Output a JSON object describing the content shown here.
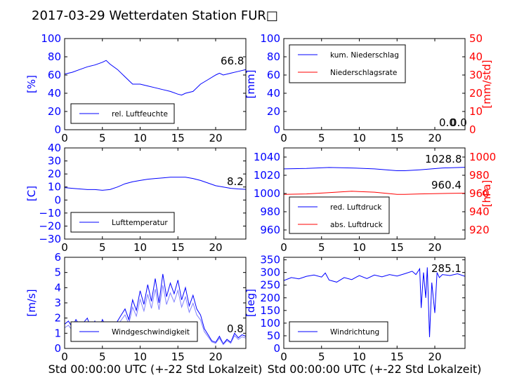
{
  "figure": {
    "title": "2017-03-29 Wetterdaten Station FUR□",
    "xlabel_left": "Std 00:00:00 UTC (+-22 Std Lokalzeit)",
    "xlabel_right": "Std 00:00:00 UTC (+-22 Std Lokalzeit)"
  },
  "colors": {
    "blue": "#0000ff",
    "red": "#ff0000",
    "light_blue": "#7f7fff",
    "black": "#000000"
  },
  "chart_data": [
    {
      "id": "humidity",
      "type": "line",
      "ylabel": "[%]",
      "xlim": [
        0,
        24
      ],
      "ylim": [
        0,
        100
      ],
      "xticks": [
        "0",
        "5",
        "10",
        "15",
        "20"
      ],
      "yticks": [
        "0",
        "20",
        "40",
        "60",
        "80",
        "100"
      ],
      "legend": {
        "position": "lower-left",
        "entries": [
          "rel. Luftfeuchte"
        ]
      },
      "annotations": [
        "66.8"
      ],
      "series": [
        {
          "name": "rel. Luftfeuchte",
          "color": "#0000ff",
          "x": [
            0,
            1,
            2,
            3,
            4,
            5,
            5.5,
            6,
            7,
            8,
            9,
            10,
            11,
            12,
            13,
            14,
            15,
            15.5,
            16,
            17,
            18,
            19,
            20,
            20.5,
            21,
            22,
            23,
            24
          ],
          "y": [
            61,
            63,
            66,
            69,
            71,
            74,
            76,
            72,
            66,
            58,
            50,
            50,
            48,
            46,
            44,
            42,
            39,
            38,
            40,
            42,
            50,
            55,
            60,
            62,
            60,
            62,
            64,
            66
          ]
        }
      ]
    },
    {
      "id": "precip",
      "type": "line",
      "ylabel": "[mm]",
      "y2label": "[mm/std]",
      "xlim": [
        0,
        24
      ],
      "ylim": [
        0,
        100
      ],
      "y2lim": [
        0,
        50
      ],
      "xticks": [
        "0",
        "5",
        "10",
        "15",
        "20"
      ],
      "yticks": [
        "0",
        "20",
        "40",
        "60",
        "80",
        "100"
      ],
      "y2ticks": [
        "0",
        "10",
        "20",
        "30",
        "40",
        "50"
      ],
      "legend": {
        "position": "upper-left",
        "entries": [
          "kum. Niederschlag",
          "Niederschlagsrate"
        ]
      },
      "annotations": [
        "0.0",
        "0.0"
      ],
      "series": [
        {
          "name": "kum. Niederschlag",
          "color": "#0000ff",
          "x": [
            0,
            24
          ],
          "y": [
            0,
            0
          ]
        },
        {
          "name": "Niederschlagsrate",
          "color": "#ff0000",
          "x": [
            0,
            24
          ],
          "y": [
            0,
            0
          ]
        }
      ]
    },
    {
      "id": "temperature",
      "type": "line",
      "ylabel": "[C]",
      "xlim": [
        0,
        24
      ],
      "ylim": [
        -30,
        40
      ],
      "xticks": [
        "0",
        "5",
        "10",
        "15",
        "20"
      ],
      "yticks": [
        "−30",
        "−20",
        "−10",
        "0",
        "10",
        "20",
        "30",
        "40"
      ],
      "legend": {
        "position": "lower-left",
        "entries": [
          "Lufttemperatur"
        ]
      },
      "annotations": [
        "8.2"
      ],
      "series": [
        {
          "name": "Lufttemperatur",
          "color": "#0000ff",
          "x": [
            0,
            1,
            2,
            3,
            4,
            5,
            6,
            7,
            8,
            9,
            10,
            11,
            12,
            13,
            14,
            15,
            16,
            17,
            18,
            19,
            20,
            21,
            22,
            23,
            24
          ],
          "y": [
            9.5,
            9,
            8.5,
            8,
            8,
            7.5,
            8,
            10,
            12.5,
            14,
            15,
            16,
            16.5,
            17,
            17.5,
            17.5,
            17.5,
            16.5,
            15,
            13,
            11,
            10,
            9,
            8.5,
            8.2
          ]
        }
      ]
    },
    {
      "id": "pressure",
      "type": "line",
      "ylabel": "",
      "y2label": "[hPa]",
      "xlim": [
        0,
        24
      ],
      "ylim": [
        950,
        1050
      ],
      "y2lim": [
        910,
        1010
      ],
      "xticks": [
        "0",
        "5",
        "10",
        "15",
        "20"
      ],
      "yticks": [
        "960",
        "980",
        "1000",
        "1020",
        "1040"
      ],
      "y2ticks": [
        "920",
        "940",
        "960",
        "980",
        "1000"
      ],
      "legend": {
        "position": "lower-left",
        "entries": [
          "red. Luftdruck",
          "abs. Luftdruck"
        ]
      },
      "annotations": [
        "1028.8",
        "960.4"
      ],
      "series": [
        {
          "name": "red. Luftdruck",
          "color": "#0000ff",
          "x": [
            0,
            3,
            6,
            9,
            12,
            15,
            16,
            18,
            21,
            24
          ],
          "y": [
            1027,
            1027.5,
            1028.5,
            1028,
            1027,
            1025,
            1025,
            1026,
            1028,
            1028.8
          ]
        },
        {
          "name": "abs. Luftdruck",
          "color": "#ff0000",
          "x": [
            0,
            3,
            6,
            9,
            12,
            15,
            16,
            18,
            21,
            24
          ],
          "y": [
            959,
            959.5,
            961,
            962.5,
            961.5,
            959,
            959,
            959.5,
            960,
            960.4
          ]
        }
      ]
    },
    {
      "id": "wind_speed",
      "type": "line",
      "ylabel": "[m/s]",
      "xlim": [
        0,
        24
      ],
      "ylim": [
        0,
        6
      ],
      "xticks": [
        "0",
        "5",
        "10",
        "15",
        "20"
      ],
      "yticks": [
        "0",
        "1",
        "2",
        "3",
        "4",
        "5",
        "6"
      ],
      "legend": {
        "position": "lower-left",
        "entries": [
          "Windgeschwindigkeit"
        ]
      },
      "annotations": [
        "0.8"
      ],
      "series": [
        {
          "name": "Windgeschwindigkeit",
          "color": "#0000ff",
          "x": [
            0,
            0.5,
            1,
            1.5,
            2,
            2.5,
            3,
            3.5,
            4,
            4.5,
            5,
            5.5,
            6,
            6.5,
            7,
            7.5,
            8,
            8.5,
            9,
            9.5,
            10,
            10.5,
            11,
            11.5,
            12,
            12.5,
            13,
            13.5,
            14,
            14.5,
            15,
            15.5,
            16,
            16.5,
            17,
            17.5,
            18,
            18.5,
            19,
            19.5,
            20,
            20.5,
            21,
            21.5,
            22,
            22.5,
            23,
            23.5,
            24
          ],
          "y": [
            1.6,
            1.8,
            1.4,
            1.9,
            1.5,
            1.7,
            2.0,
            1.3,
            1.8,
            1.2,
            1.9,
            1.4,
            1.6,
            1.3,
            1.8,
            2.2,
            2.6,
            1.9,
            3.2,
            2.5,
            3.8,
            2.9,
            4.2,
            3.1,
            4.6,
            3.0,
            4.9,
            3.4,
            4.3,
            3.6,
            4.5,
            3.2,
            4.0,
            2.8,
            3.5,
            2.6,
            2.2,
            1.3,
            0.9,
            0.5,
            0.4,
            0.8,
            0.3,
            0.6,
            0.4,
            1.0,
            0.7,
            0.9,
            0.8
          ]
        }
      ]
    },
    {
      "id": "wind_dir",
      "type": "line",
      "ylabel": "[deg]",
      "xlim": [
        0,
        24
      ],
      "ylim": [
        0,
        360
      ],
      "xticks": [
        "0",
        "5",
        "10",
        "15",
        "20"
      ],
      "yticks": [
        "0",
        "50",
        "100",
        "150",
        "200",
        "250",
        "300",
        "350"
      ],
      "legend": {
        "position": "lower-left",
        "entries": [
          "Windrichtung"
        ]
      },
      "annotations": [
        "285.1"
      ],
      "series": [
        {
          "name": "Windrichtung",
          "color": "#0000ff",
          "x": [
            0,
            1,
            2,
            3,
            4,
            5,
            5.5,
            6,
            7,
            8,
            9,
            10,
            11,
            12,
            13,
            14,
            15,
            16,
            17,
            17.5,
            18,
            18.2,
            18.5,
            18.8,
            19,
            19.3,
            19.6,
            20,
            20.3,
            20.6,
            21,
            22,
            23,
            24
          ],
          "y": [
            268,
            280,
            275,
            285,
            290,
            282,
            298,
            270,
            262,
            280,
            272,
            288,
            276,
            290,
            283,
            292,
            286,
            295,
            305,
            292,
            315,
            160,
            300,
            200,
            320,
            45,
            260,
            140,
            300,
            280,
            292,
            288,
            295,
            285
          ]
        }
      ]
    }
  ]
}
